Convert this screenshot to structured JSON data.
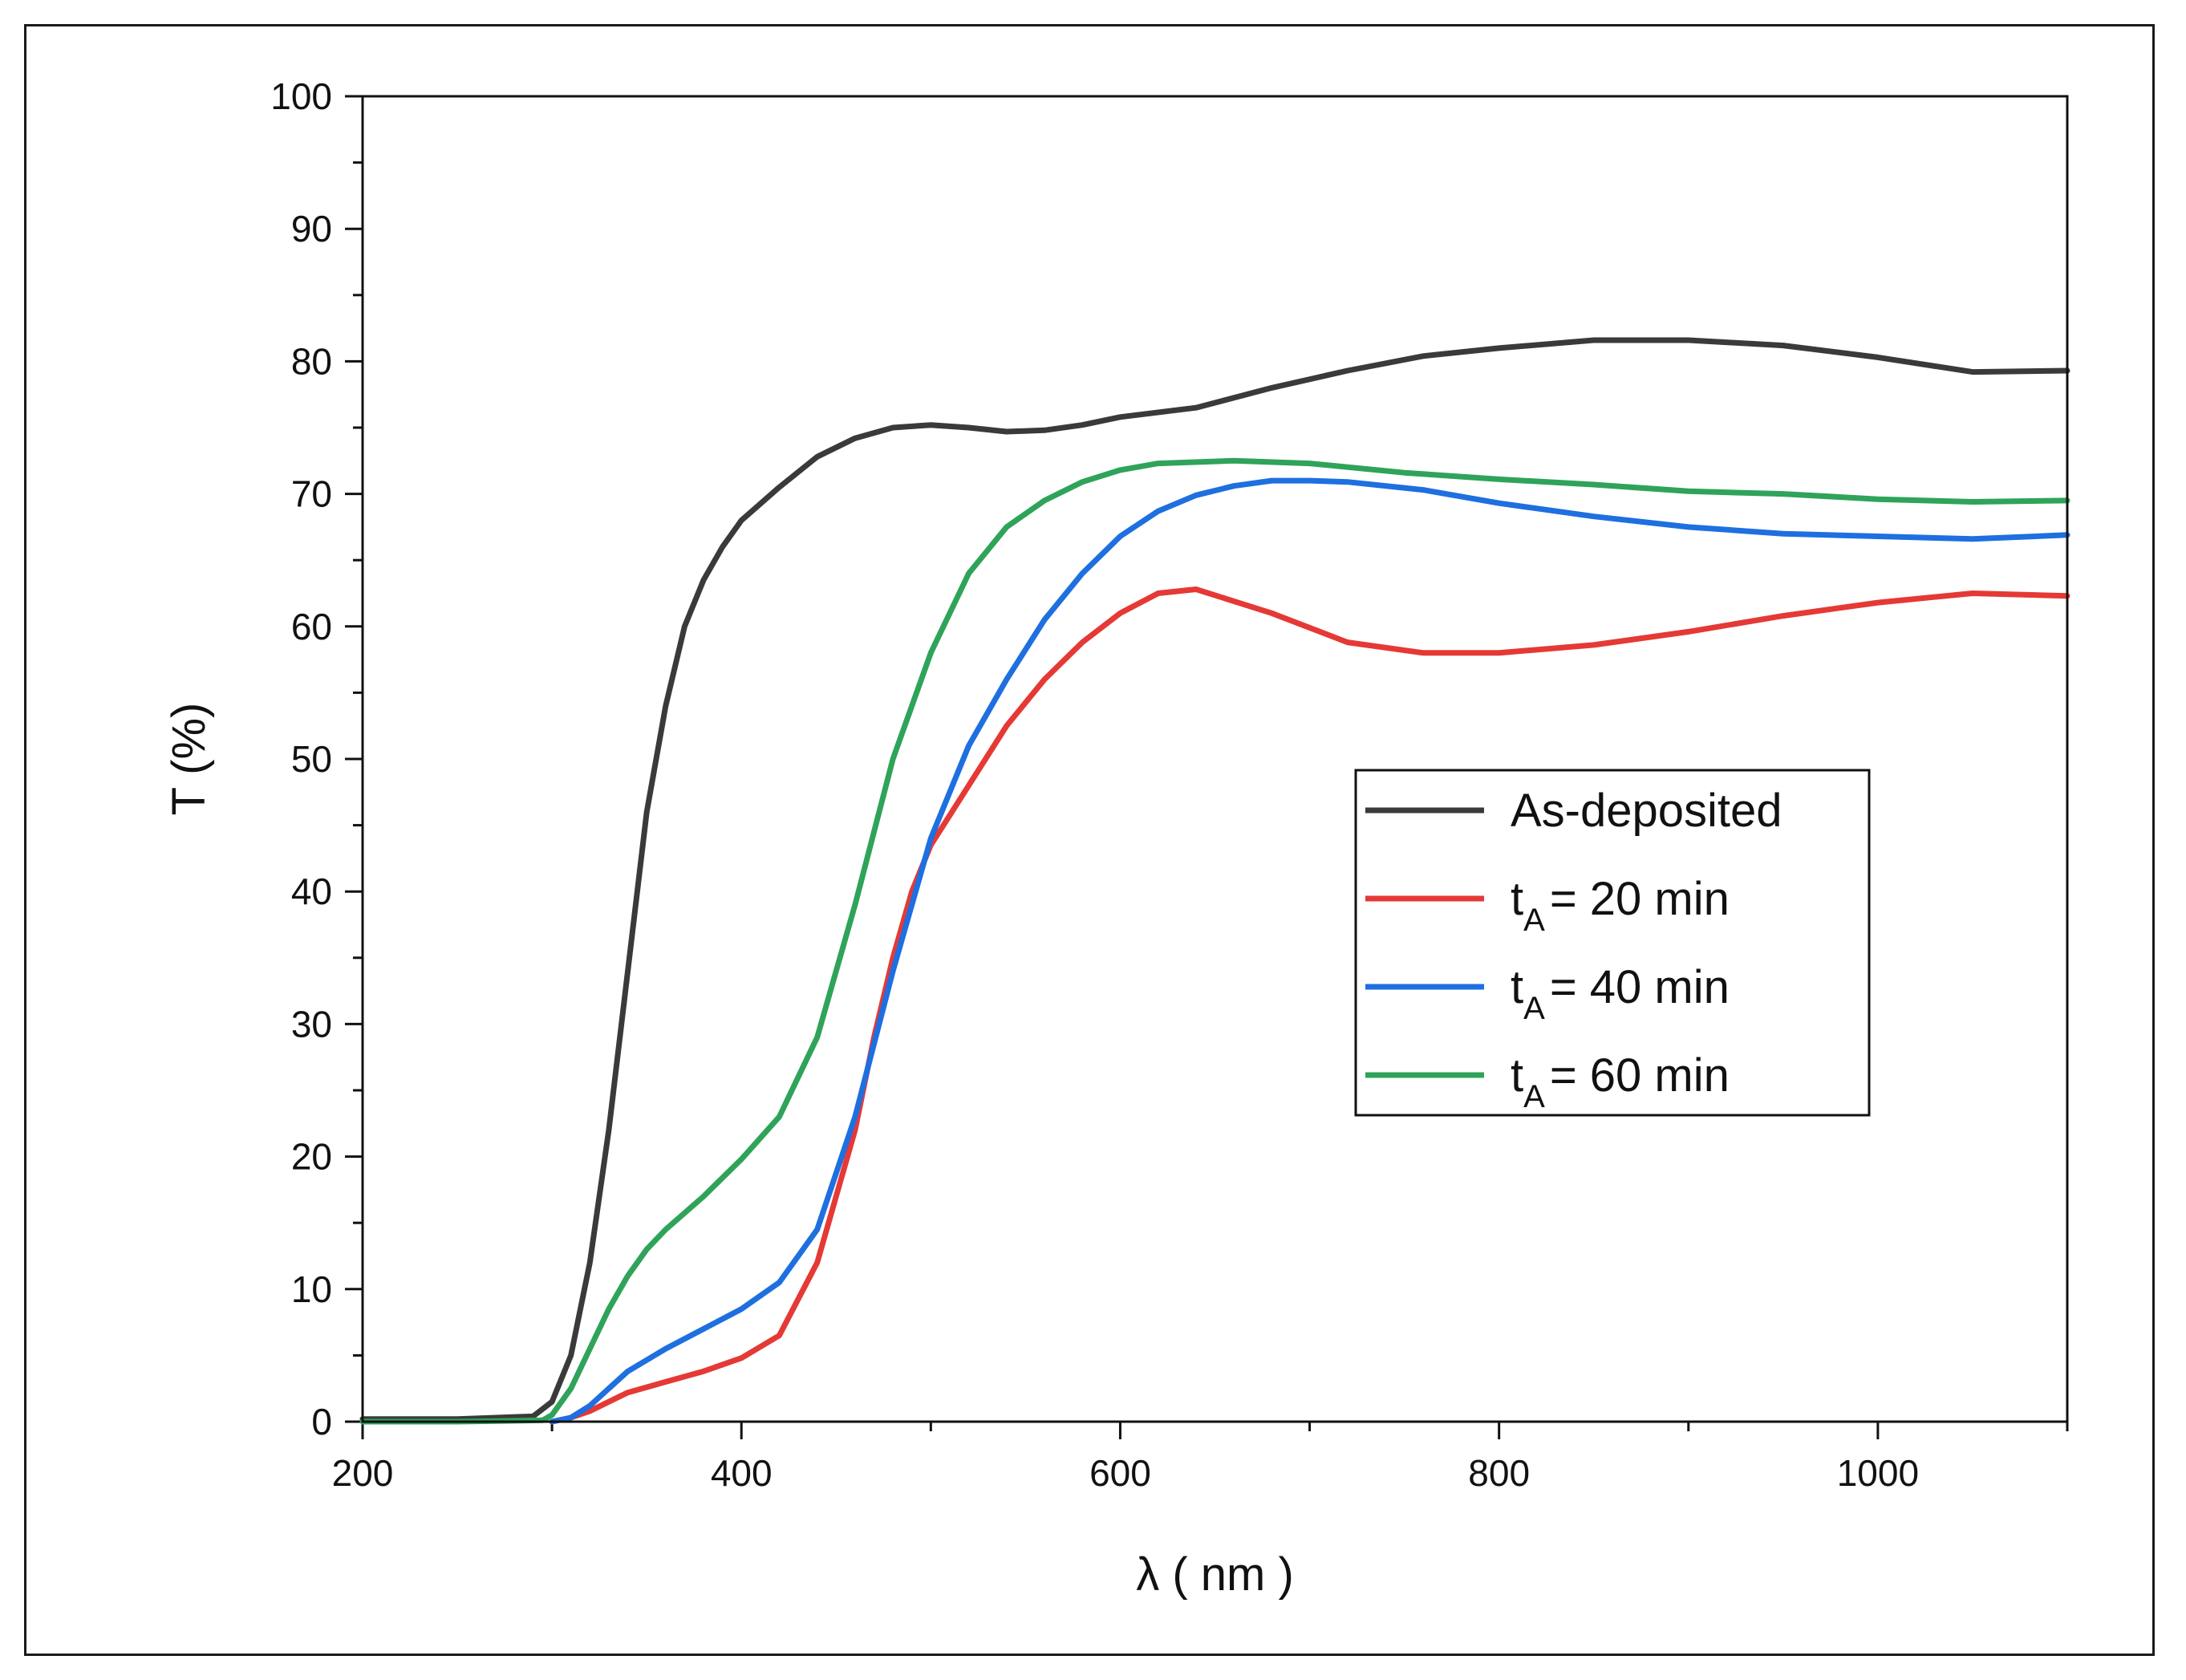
{
  "chart_data": {
    "type": "line",
    "title": "",
    "xlabel": "λ ( nm )",
    "ylabel": "T (%)",
    "xlim": [
      200,
      1100
    ],
    "ylim": [
      0,
      100
    ],
    "x_ticks": [
      200,
      400,
      600,
      800,
      1000
    ],
    "y_ticks": [
      0,
      10,
      20,
      30,
      40,
      50,
      60,
      70,
      80,
      90,
      100
    ],
    "legend_position": "center-right",
    "legend": [
      {
        "main": "As-deposited",
        "sub": "",
        "rest": ""
      },
      {
        "main": "t",
        "sub": "A",
        "rest": "= 20 min"
      },
      {
        "main": "t",
        "sub": "A",
        "rest": "= 40 min"
      },
      {
        "main": "t",
        "sub": "A",
        "rest": "= 60 min"
      }
    ],
    "series": [
      {
        "name": "As-deposited",
        "color": "#3a3a3a",
        "x": [
          200,
          250,
          290,
          300,
          310,
          320,
          330,
          340,
          350,
          360,
          370,
          380,
          390,
          400,
          420,
          440,
          460,
          480,
          500,
          520,
          540,
          560,
          580,
          600,
          640,
          680,
          720,
          760,
          800,
          850,
          900,
          950,
          1000,
          1050,
          1100
        ],
        "y": [
          0.2,
          0.2,
          0.4,
          1.5,
          5,
          12,
          22,
          34,
          46,
          54,
          60,
          63.5,
          66,
          68,
          70.5,
          72.8,
          74.2,
          75,
          75.2,
          75,
          74.7,
          74.8,
          75.2,
          75.8,
          76.5,
          78,
          79.3,
          80.4,
          81,
          81.6,
          81.6,
          81.2,
          80.3,
          79.2,
          79.3
        ]
      },
      {
        "name": "tA = 20 min",
        "color": "#e53935",
        "x": [
          300,
          310,
          320,
          330,
          340,
          360,
          380,
          400,
          420,
          440,
          460,
          470,
          480,
          490,
          500,
          520,
          540,
          560,
          580,
          600,
          620,
          640,
          680,
          720,
          760,
          800,
          850,
          900,
          950,
          1000,
          1050,
          1100
        ],
        "y": [
          0,
          0.3,
          0.8,
          1.5,
          2.2,
          3,
          3.8,
          4.8,
          6.5,
          12,
          22,
          29,
          35,
          40,
          43.5,
          48,
          52.5,
          56,
          58.8,
          61,
          62.5,
          62.8,
          61,
          58.8,
          58,
          58,
          58.6,
          59.6,
          60.8,
          61.8,
          62.5,
          62.3
        ]
      },
      {
        "name": "tA = 40 min",
        "color": "#1e6fe0",
        "x": [
          300,
          310,
          320,
          330,
          340,
          360,
          380,
          400,
          420,
          440,
          460,
          480,
          500,
          520,
          540,
          560,
          580,
          600,
          620,
          640,
          660,
          680,
          700,
          720,
          760,
          800,
          850,
          900,
          950,
          1000,
          1050,
          1100
        ],
        "y": [
          0,
          0.3,
          1.2,
          2.5,
          3.8,
          5.5,
          7,
          8.5,
          10.5,
          14.5,
          23,
          34,
          44,
          51,
          56,
          60.5,
          64,
          66.8,
          68.7,
          69.9,
          70.6,
          71,
          71,
          70.9,
          70.3,
          69.3,
          68.3,
          67.5,
          67,
          66.8,
          66.6,
          66.9
        ]
      },
      {
        "name": "tA = 60 min",
        "color": "#2fa35a",
        "x": [
          200,
          250,
          295,
          300,
          310,
          320,
          330,
          340,
          350,
          360,
          380,
          400,
          420,
          440,
          460,
          480,
          500,
          520,
          540,
          560,
          580,
          600,
          620,
          660,
          700,
          750,
          800,
          850,
          900,
          950,
          1000,
          1050,
          1100
        ],
        "y": [
          0,
          0,
          0.1,
          0.5,
          2.5,
          5.5,
          8.5,
          11,
          13,
          14.5,
          17,
          19.8,
          23,
          29,
          39,
          50,
          58,
          64,
          67.5,
          69.5,
          70.9,
          71.8,
          72.3,
          72.5,
          72.3,
          71.6,
          71.1,
          70.7,
          70.2,
          70,
          69.6,
          69.4,
          69.5
        ]
      }
    ]
  }
}
